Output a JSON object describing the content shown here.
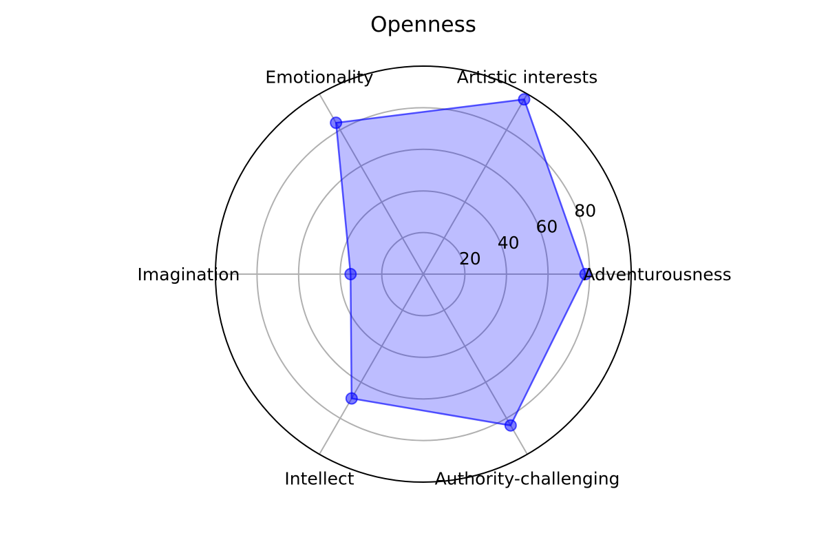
{
  "chart_data": {
    "type": "radar",
    "title": "Openness",
    "categories": [
      "Adventurousness",
      "Artistic interests",
      "Emotionality",
      "Imagination",
      "Intellect",
      "Authority-challenging"
    ],
    "series": [
      {
        "values": [
          78,
          97,
          84,
          35,
          69,
          84
        ]
      }
    ],
    "rlim": [
      0,
      100
    ],
    "r_ticks": [
      20,
      40,
      60,
      80
    ],
    "r_tick_labels": [
      "20",
      "40",
      "60",
      "80"
    ],
    "grid": true,
    "colors": {
      "fill": "#0000ff",
      "line": "#0000ff",
      "grid": "#b0b0b0",
      "frame": "#000000"
    }
  }
}
